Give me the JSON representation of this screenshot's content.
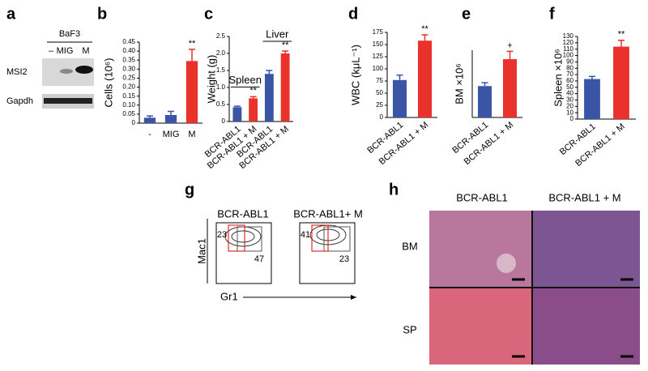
{
  "chart_data": [
    {
      "type": "bar",
      "panel": "b",
      "y_label": "Cells (10⁶)",
      "categories": [
        "-",
        "MIG",
        "M"
      ],
      "values": [
        0.03,
        0.045,
        0.345
      ],
      "errors": [
        0.01,
        0.02,
        0.065
      ],
      "colors": [
        "#3b55a6",
        "#3b55a6",
        "#e8322b"
      ],
      "significance": [
        null,
        null,
        "**"
      ],
      "ylim": [
        0,
        0.45
      ],
      "yticks": [
        0,
        0.05,
        {
          "value": 0.1,
          "label": "0.10"
        },
        0.15,
        {
          "value": 0.2,
          "label": "0.20"
        },
        0.25,
        {
          "value": 0.3,
          "label": "0.30"
        },
        0.35,
        {
          "value": 0.4,
          "label": "0.40"
        },
        0.45
      ]
    },
    {
      "type": "bar",
      "panel": "c",
      "y_label": "Weight (g)",
      "categories": [
        "BCR-ABL1",
        "BCR-ABL1 + M",
        "BCR-ABL1",
        "BCR-ABL1 + M"
      ],
      "values": [
        0.42,
        0.68,
        1.4,
        2.0
      ],
      "errors": [
        0.03,
        0.05,
        0.1,
        0.07
      ],
      "colors": [
        "#3b55a6",
        "#e8322b",
        "#3b55a6",
        "#e8322b"
      ],
      "significance": [
        null,
        "**",
        null,
        "**"
      ],
      "group_labels": [
        "Spleen",
        "Liver"
      ],
      "ylim": [
        0,
        2.5
      ],
      "yticks": [
        0,
        0.5,
        {
          "value": 1,
          "label": "1.0"
        },
        1.5,
        {
          "value": 2,
          "label": "2.0"
        },
        2.5
      ]
    },
    {
      "type": "bar",
      "panel": "d",
      "y_label": "WBC (kμL⁻¹)",
      "categories": [
        "BCR-ABL1",
        "BCR-ABL1 + M"
      ],
      "values": [
        77,
        158
      ],
      "errors": [
        10,
        12
      ],
      "colors": [
        "#3b55a6",
        "#e8322b"
      ],
      "significance": [
        null,
        "**"
      ],
      "ylim": [
        0,
        175
      ],
      "yticks": [
        0,
        25,
        50,
        75,
        100,
        125,
        150,
        175
      ]
    },
    {
      "type": "bar",
      "panel": "e",
      "y_label": "BM ×10⁶",
      "categories": [
        "BCR-ABL1",
        "BCR-ABL1 + M"
      ],
      "values": [
        14,
        26
      ],
      "errors": [
        1.5,
        3.5
      ],
      "colors": [
        "#3b55a6",
        "#e8322b"
      ],
      "significance": [
        null,
        "+"
      ],
      "ylim": [
        0,
        30
      ]
    },
    {
      "type": "bar",
      "panel": "f",
      "y_label": "Spleen ×10⁶",
      "categories": [
        "BCR-ABL1",
        "BCR-ABL1 + M"
      ],
      "values": [
        63,
        114
      ],
      "errors": [
        4,
        10
      ],
      "colors": [
        "#3b55a6",
        "#e8322b"
      ],
      "significance": [
        null,
        "**"
      ],
      "ylim": [
        0,
        130
      ],
      "yticks": [
        0,
        10,
        20,
        30,
        40,
        50,
        60,
        70,
        80,
        90,
        100,
        110,
        120,
        130
      ]
    }
  ],
  "panels": {
    "a": {
      "label": "a",
      "cell_line": "BaF3",
      "lanes": [
        "–",
        "MIG",
        "M"
      ],
      "rows": [
        "MSI2",
        "Gapdh"
      ]
    },
    "g": {
      "label": "g",
      "columns": [
        "BCR-ABL1",
        "BCR-ABL1+ M"
      ],
      "gates": [
        [
          23,
          47
        ],
        [
          41,
          23
        ]
      ],
      "y_axis": "Mac1",
      "x_axis": "Gr1"
    },
    "h": {
      "label": "h",
      "columns": [
        "BCR-ABL1",
        "BCR-ABL1 + M"
      ],
      "rows": [
        "BM",
        "SP"
      ]
    }
  }
}
